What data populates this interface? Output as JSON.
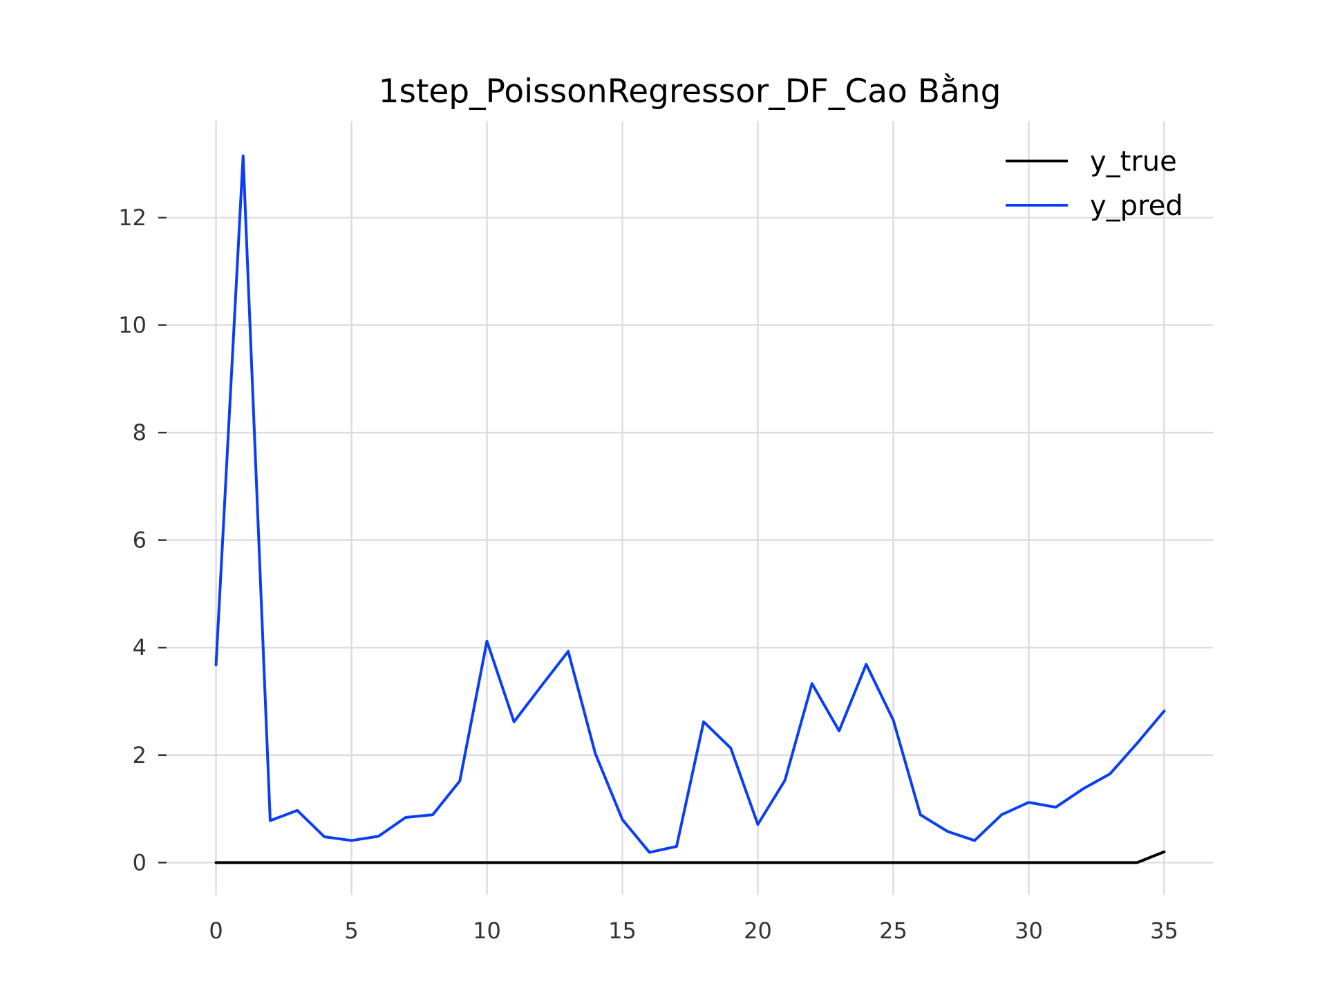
{
  "chart_data": {
    "type": "line",
    "title": "1step_PoissonRegressor_DF_Cao Bằng",
    "xlabel": "",
    "ylabel": "",
    "x": [
      0,
      1,
      2,
      3,
      4,
      5,
      6,
      7,
      8,
      9,
      10,
      11,
      12,
      13,
      14,
      15,
      16,
      17,
      18,
      19,
      20,
      21,
      22,
      23,
      24,
      25,
      26,
      27,
      28,
      29,
      30,
      31,
      32,
      33,
      34,
      35
    ],
    "xlim": [
      -1.8,
      36.8
    ],
    "ylim": [
      -0.6,
      13.8
    ],
    "xticks": [
      0,
      5,
      10,
      15,
      20,
      25,
      30,
      35
    ],
    "xtick_labels": [
      "0",
      "5",
      "10",
      "15",
      "20",
      "25",
      "30",
      "35"
    ],
    "yticks": [
      0,
      2,
      4,
      6,
      8,
      10,
      12
    ],
    "ytick_labels": [
      "0",
      "2",
      "4",
      "6",
      "8",
      "10",
      "12"
    ],
    "grid": true,
    "legend_position": "top-right",
    "series": [
      {
        "name": "y_true",
        "color": "#000000",
        "values": [
          0,
          0,
          0,
          0,
          0,
          0,
          0,
          0,
          0,
          0,
          0,
          0,
          0,
          0,
          0,
          0,
          0,
          0,
          0,
          0,
          0,
          0,
          0,
          0,
          0,
          0,
          0,
          0,
          0,
          0,
          0,
          0,
          0,
          0,
          0,
          0.2
        ]
      },
      {
        "name": "y_pred",
        "color": "#0a3ef5",
        "values": [
          3.68,
          13.15,
          0.78,
          0.97,
          0.48,
          0.41,
          0.49,
          0.84,
          0.89,
          1.52,
          4.12,
          2.62,
          3.28,
          3.93,
          2.03,
          0.8,
          0.19,
          0.3,
          2.62,
          2.13,
          0.71,
          1.53,
          3.33,
          2.45,
          3.69,
          2.65,
          0.89,
          0.58,
          0.41,
          0.89,
          1.12,
          1.03,
          1.37,
          1.65,
          2.22,
          2.82
        ]
      }
    ]
  }
}
